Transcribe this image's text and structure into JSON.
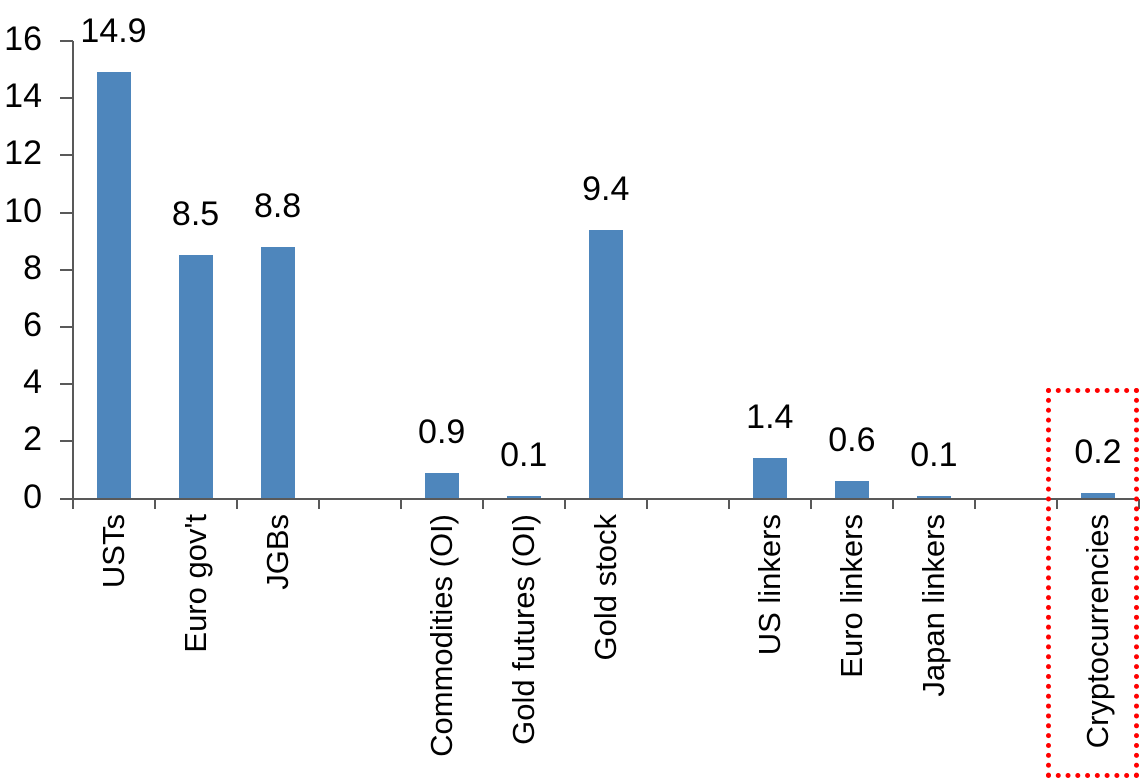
{
  "chart_data": {
    "type": "bar",
    "title": "",
    "xlabel": "",
    "ylabel": "",
    "categories": [
      "USTs",
      "Euro gov't",
      "JGBs",
      "Commodities (OI)",
      "Gold futures (OI)",
      "Gold stock",
      "US linkers",
      "Euro linkers",
      "Japan linkers",
      "Cryptocurrencies"
    ],
    "values": [
      14.9,
      8.5,
      8.8,
      0.9,
      0.1,
      9.4,
      1.4,
      0.6,
      0.1,
      0.2
    ],
    "data_labels": [
      "14.9",
      "8.5",
      "8.8",
      "0.9",
      "0.1",
      "9.4",
      "1.4",
      "0.6",
      "0.1",
      "0.2"
    ],
    "slot_index": [
      0,
      1,
      2,
      4,
      5,
      6,
      8,
      9,
      10,
      12
    ],
    "total_slots": 13,
    "groups": [
      [
        "USTs",
        "Euro gov't",
        "JGBs"
      ],
      [
        "Commodities (OI)",
        "Gold futures (OI)",
        "Gold stock"
      ],
      [
        "US linkers",
        "Euro linkers",
        "Japan linkers"
      ],
      [
        "Cryptocurrencies"
      ]
    ],
    "ylim": [
      0,
      16
    ],
    "yticks": [
      0,
      2,
      4,
      6,
      8,
      10,
      12,
      14,
      16
    ],
    "grid": false,
    "legend": false,
    "bar_color": "#4E86BC",
    "axis_color": "#595959",
    "label_color": "#000000",
    "highlight": {
      "category": "Cryptocurrencies",
      "style": "red-dotted-box",
      "color": "#FF0000"
    }
  }
}
